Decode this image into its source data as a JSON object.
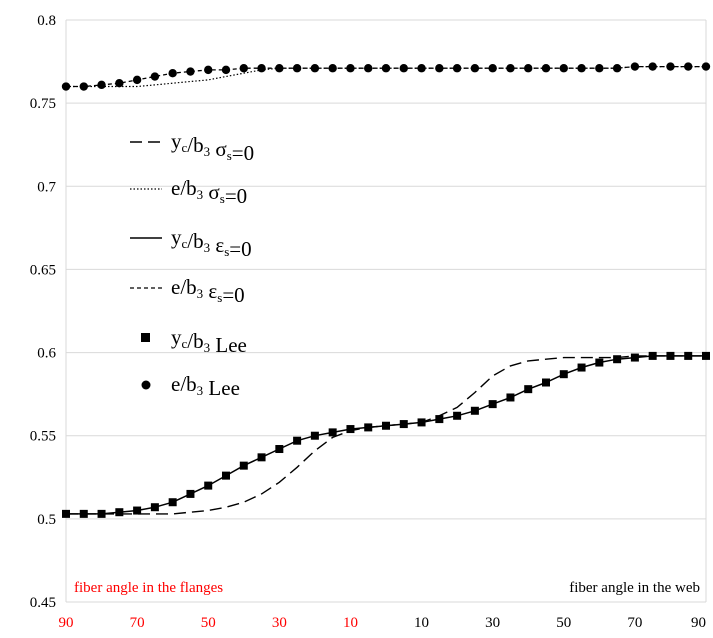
{
  "chart_data": {
    "type": "line",
    "title": "",
    "xlabel": "",
    "ylabel": "",
    "ylim": [
      0.45,
      0.8
    ],
    "yticks": [
      "0.45",
      "0.5",
      "0.55",
      "0.6",
      "0.65",
      "0.7",
      "0.75",
      "0.8"
    ],
    "xticks": [
      {
        "label": "90",
        "color": "#ff0000"
      },
      {
        "label": "70",
        "color": "#ff0000"
      },
      {
        "label": "50",
        "color": "#ff0000"
      },
      {
        "label": "30",
        "color": "#ff0000"
      },
      {
        "label": "10",
        "color": "#ff0000"
      },
      {
        "label": "10",
        "color": "#000000"
      },
      {
        "label": "30",
        "color": "#000000"
      },
      {
        "label": "50",
        "color": "#000000"
      },
      {
        "label": "70",
        "color": "#000000"
      },
      {
        "label": "90",
        "color": "#000000"
      }
    ],
    "x_notes": [
      {
        "text": "fiber angle in the flanges",
        "color": "#ff0000"
      },
      {
        "text": "fiber angle in the web",
        "color": "#000000"
      }
    ],
    "grid": "horizontal",
    "legend_position": "left",
    "x": [
      -90,
      -85,
      -80,
      -75,
      -70,
      -65,
      -60,
      -55,
      -50,
      -45,
      -40,
      -35,
      -30,
      -25,
      -20,
      -15,
      -10,
      -5,
      0,
      5,
      10,
      15,
      20,
      25,
      30,
      35,
      40,
      45,
      50,
      55,
      60,
      65,
      70,
      75,
      80,
      85,
      90
    ],
    "series": [
      {
        "legend": {
          "main": "y",
          "sub": "c",
          "rest": "/b",
          "sub2": "3",
          "tail": " σ",
          "sub3": "s",
          "end": "=0"
        },
        "style": "long-dash",
        "values": [
          0.503,
          0.503,
          0.503,
          0.503,
          0.503,
          0.503,
          0.503,
          0.504,
          0.505,
          0.507,
          0.51,
          0.515,
          0.522,
          0.531,
          0.541,
          0.549,
          0.553,
          0.555,
          0.556,
          0.557,
          0.558,
          0.562,
          0.567,
          0.576,
          0.586,
          0.592,
          0.595,
          0.596,
          0.597,
          0.597,
          0.597,
          0.597,
          0.598,
          0.598,
          0.598,
          0.598,
          0.598
        ]
      },
      {
        "legend": {
          "main": "e",
          "sub": "",
          "rest": "/b",
          "sub2": "3",
          "tail": " σ",
          "sub3": "s",
          "end": "=0"
        },
        "style": "dotted",
        "values": [
          0.76,
          0.76,
          0.76,
          0.76,
          0.76,
          0.761,
          0.762,
          0.763,
          0.764,
          0.766,
          0.768,
          0.77,
          0.771,
          0.771,
          0.771,
          0.771,
          0.771,
          0.771,
          0.771,
          0.771,
          0.771,
          0.771,
          0.771,
          0.771,
          0.771,
          0.771,
          0.771,
          0.771,
          0.771,
          0.771,
          0.771,
          0.771,
          0.772,
          0.772,
          0.772,
          0.772,
          0.772
        ]
      },
      {
        "legend": {
          "main": "y",
          "sub": "c",
          "rest": "/b",
          "sub2": "3",
          "tail": " ε",
          "sub3": "s",
          "end": "=0"
        },
        "style": "solid",
        "values": [
          0.503,
          0.503,
          0.503,
          0.504,
          0.505,
          0.507,
          0.51,
          0.515,
          0.52,
          0.526,
          0.532,
          0.537,
          0.542,
          0.547,
          0.55,
          0.552,
          0.554,
          0.555,
          0.556,
          0.557,
          0.558,
          0.56,
          0.562,
          0.565,
          0.569,
          0.573,
          0.578,
          0.582,
          0.587,
          0.591,
          0.594,
          0.596,
          0.597,
          0.598,
          0.598,
          0.598,
          0.598
        ]
      },
      {
        "legend": {
          "main": "e",
          "sub": "",
          "rest": "/b",
          "sub2": "3",
          "tail": " ε",
          "sub3": "s",
          "end": "=0"
        },
        "style": "short-dash",
        "values": [
          0.76,
          0.76,
          0.761,
          0.762,
          0.764,
          0.766,
          0.768,
          0.769,
          0.77,
          0.77,
          0.771,
          0.771,
          0.771,
          0.771,
          0.771,
          0.771,
          0.771,
          0.771,
          0.771,
          0.771,
          0.771,
          0.771,
          0.771,
          0.771,
          0.771,
          0.771,
          0.771,
          0.771,
          0.771,
          0.771,
          0.771,
          0.771,
          0.772,
          0.772,
          0.772,
          0.772,
          0.772
        ]
      },
      {
        "legend": {
          "main": "y",
          "sub": "c",
          "rest": "/b",
          "sub2": "3",
          "tail": " Lee",
          "sub3": "",
          "end": ""
        },
        "style": "square-markers",
        "values": [
          0.503,
          0.503,
          0.503,
          0.504,
          0.505,
          0.507,
          0.51,
          0.515,
          0.52,
          0.526,
          0.532,
          0.537,
          0.542,
          0.547,
          0.55,
          0.552,
          0.554,
          0.555,
          0.556,
          0.557,
          0.558,
          0.56,
          0.562,
          0.565,
          0.569,
          0.573,
          0.578,
          0.582,
          0.587,
          0.591,
          0.594,
          0.596,
          0.597,
          0.598,
          0.598,
          0.598,
          0.598
        ]
      },
      {
        "legend": {
          "main": "e",
          "sub": "",
          "rest": "/b",
          "sub2": "3",
          "tail": " Lee",
          "sub3": "",
          "end": ""
        },
        "style": "circle-markers",
        "values": [
          0.76,
          0.76,
          0.761,
          0.762,
          0.764,
          0.766,
          0.768,
          0.769,
          0.77,
          0.77,
          0.771,
          0.771,
          0.771,
          0.771,
          0.771,
          0.771,
          0.771,
          0.771,
          0.771,
          0.771,
          0.771,
          0.771,
          0.771,
          0.771,
          0.771,
          0.771,
          0.771,
          0.771,
          0.771,
          0.771,
          0.771,
          0.771,
          0.772,
          0.772,
          0.772,
          0.772,
          0.772
        ]
      }
    ]
  }
}
